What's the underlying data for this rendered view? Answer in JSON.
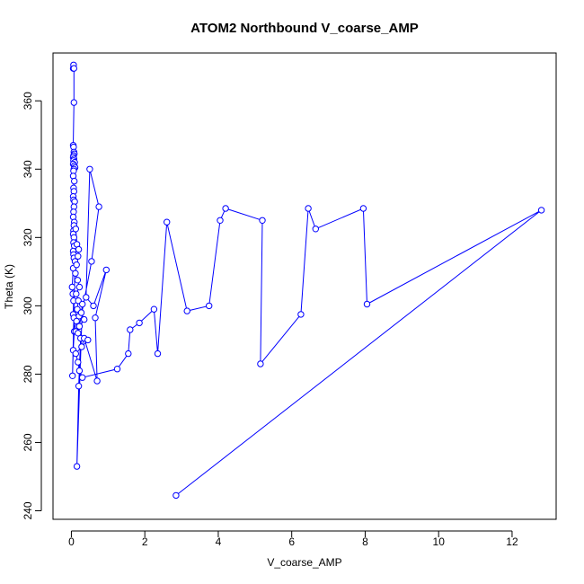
{
  "chart_data": {
    "type": "scatter",
    "title": "ATOM2 Northbound V_coarse_AMP",
    "xlabel": "V_coarse_AMP",
    "ylabel": "Theta (K)",
    "xlim": [
      -0.5,
      13.2
    ],
    "ylim": [
      237.5,
      374
    ],
    "x_ticks": [
      0,
      2,
      4,
      6,
      8,
      10,
      12
    ],
    "y_ticks": [
      240,
      260,
      280,
      300,
      320,
      340,
      360
    ],
    "grid": false,
    "legend": "none",
    "marker": "open-circle",
    "connect_points": true,
    "colors": {
      "series": "#0000ff",
      "axis": "#000000",
      "background": "#ffffff"
    },
    "series": [
      {
        "x": [
          0.05,
          0.06,
          0.07,
          0.07,
          0.05,
          0.06,
          0.07,
          0.08,
          0.06,
          0.05,
          0.07,
          0.06,
          0.09,
          0.05,
          0.08,
          0.1,
          0.07,
          0.06,
          0.05,
          0.08,
          0.06,
          0.07,
          0.05,
          0.06,
          0.09,
          0.07,
          0.06,
          0.05,
          0.08,
          0.07,
          0.06,
          0.05,
          0.07,
          0.06,
          0.08,
          0.05,
          0.06,
          0.07,
          0.1,
          0.05,
          0.02,
          0.04,
          0.06,
          0.05,
          0.07,
          0.08,
          0.05,
          0.03,
          0.12,
          0.15,
          0.2,
          0.18,
          0.14,
          0.11,
          0.17,
          0.22,
          0.13,
          0.19,
          0.16,
          0.21,
          0.14,
          0.18,
          0.12,
          0.25,
          0.2,
          0.15,
          0.3,
          0.27,
          0.35,
          0.22,
          0.18,
          0.55,
          0.75,
          0.5,
          0.4,
          0.6,
          0.95,
          0.65,
          0.7,
          0.35,
          0.28,
          0.45,
          0.12,
          0.18,
          0.22,
          0.3,
          1.25,
          1.55,
          1.6,
          1.85,
          2.25,
          2.35,
          2.6,
          3.15,
          3.75,
          4.05,
          4.2,
          5.2,
          5.15,
          6.25,
          6.45,
          6.65,
          7.95,
          8.05,
          12.8,
          2.85
        ],
        "y": [
          369.5,
          370.5,
          369.5,
          359.5,
          347.0,
          346.5,
          345.0,
          344.5,
          344.0,
          343.5,
          343.0,
          342.5,
          342.0,
          341.5,
          341.0,
          340.5,
          340.0,
          339.5,
          338.0,
          336.5,
          334.5,
          333.5,
          332.0,
          331.0,
          330.5,
          329.0,
          327.5,
          326.0,
          324.5,
          323.5,
          322.0,
          321.0,
          320.0,
          318.5,
          317.5,
          316.0,
          315.0,
          314.0,
          313.0,
          311.0,
          305.5,
          303.5,
          301.5,
          297.5,
          296.5,
          292.5,
          287.0,
          279.5,
          322.5,
          318.0,
          316.5,
          314.5,
          312.0,
          309.5,
          307.5,
          305.5,
          303.5,
          301.5,
          299.0,
          297.0,
          295.5,
          294.0,
          292.5,
          290.5,
          276.5,
          253.0,
          300.5,
          298.0,
          296.0,
          294.0,
          292.0,
          313.0,
          329.0,
          340.0,
          302.5,
          300.0,
          310.5,
          296.5,
          278.0,
          290.5,
          288.0,
          290.0,
          286.0,
          283.5,
          281.0,
          279.0,
          281.5,
          286.0,
          293.0,
          295.0,
          299.0,
          286.0,
          324.5,
          298.5,
          300.0,
          325.0,
          328.5,
          325.0,
          283.0,
          297.5,
          328.5,
          322.5,
          328.5,
          300.5,
          328.0,
          244.5
        ]
      }
    ]
  }
}
